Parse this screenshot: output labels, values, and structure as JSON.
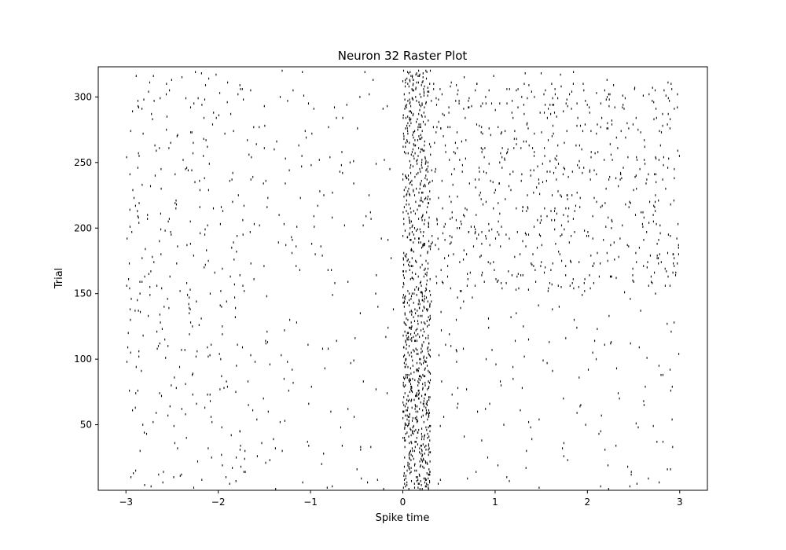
{
  "chart_data": {
    "type": "scatter",
    "title": "Neuron 32 Raster Plot",
    "xlabel": "Spike time",
    "ylabel": "Trial",
    "xlim": [
      -3.3,
      3.3
    ],
    "ylim": [
      0,
      323
    ],
    "xticks": [
      -3,
      -2,
      -1,
      0,
      1,
      2,
      3
    ],
    "xtick_labels": [
      "−3",
      "−2",
      "−1",
      "0",
      "1",
      "2",
      "3"
    ],
    "yticks": [
      50,
      100,
      150,
      200,
      250,
      300
    ],
    "ytick_labels": [
      "50",
      "100",
      "150",
      "200",
      "250",
      "300"
    ],
    "grid": false,
    "legend": "none",
    "marker": "|",
    "marker_color": "#000000",
    "trials": 320,
    "time_range": [
      -3,
      3
    ],
    "stimulus_onset": 0,
    "response": {
      "peak_window": [
        0.0,
        0.3
      ],
      "trial_ranges": [
        {
          "trials": [
            1,
            150
          ],
          "pre_rate": 0.45,
          "peak_rate": 3.0,
          "post_rate": 0.3
        },
        {
          "trials": [
            150,
            310
          ],
          "pre_rate": 0.5,
          "peak_rate": 2.0,
          "post_rate": 1.4
        }
      ]
    }
  }
}
